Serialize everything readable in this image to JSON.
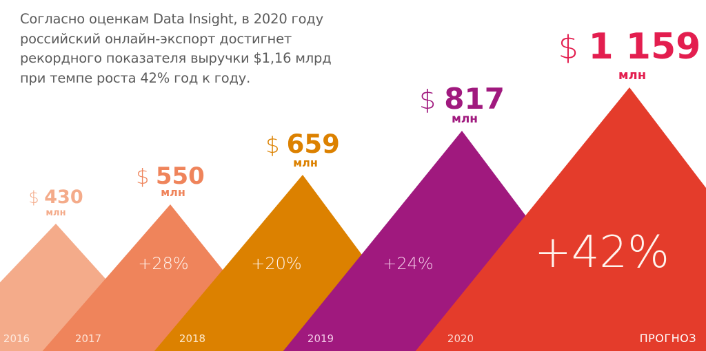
{
  "intro": {
    "lines": [
      "Согласно оценкам Data Insight, в 2020 году",
      "российский онлайн-экспорт достигнет",
      "рекордного показателя выручки $1,16 млрд",
      "при темпе роста 42% год к году."
    ]
  },
  "chart_data": {
    "type": "area",
    "title": "Согласно оценкам Data Insight, в 2020 году российский онлайн-экспорт достигнет рекордного показателя выручки $1,16 млрд при темпе роста 42% год к году.",
    "xlabel": "",
    "ylabel": "",
    "currency": "$",
    "unit": "млн",
    "categories": [
      "2016",
      "2017",
      "2018",
      "2019",
      "2020"
    ],
    "values": [
      430,
      550,
      659,
      817,
      1159
    ],
    "value_labels": [
      "430",
      "550",
      "659",
      "817",
      "1 159"
    ],
    "growth_labels": [
      "",
      "+28%",
      "+20%",
      "+24%",
      "+42%"
    ],
    "forecast_label": "ПРОГНОЗ",
    "forecast_category": "2020",
    "colors": [
      "#f4ab8a",
      "#ef845b",
      "#dc8100",
      "#a0197e",
      "#e43c2b"
    ],
    "value_label_colors": [
      "#f4ab8a",
      "#ef845b",
      "#dc8100",
      "#a0197e",
      "#e31e4f"
    ],
    "year_label_colors": [
      "#fde8dd",
      "#fde3d6",
      "#fde9cc",
      "#f3c9e7",
      "#fbd5cf"
    ],
    "grid": false,
    "legend": "none"
  }
}
